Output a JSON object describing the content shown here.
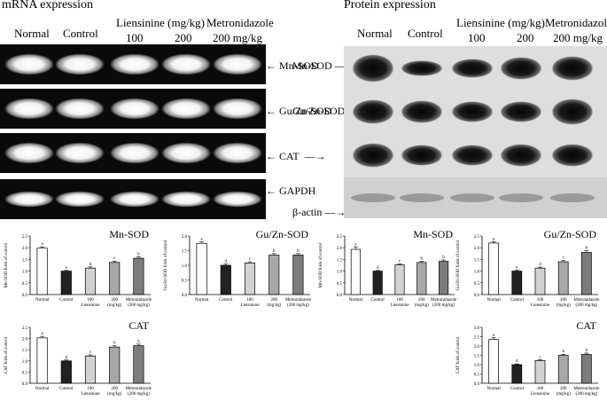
{
  "sections": {
    "mrna_title": "mRNA expression",
    "protein_title": "Protein expression"
  },
  "groups": {
    "normal": "Normal",
    "control": "Control",
    "liensinine": "Liensinine (mg/kg)",
    "dose100": "100",
    "dose200": "200",
    "metronidazole": "Metronidazole",
    "metro_dose": "200 mg/kg"
  },
  "gel_labels": [
    "Mn-SOD",
    "Gu/Zn-SOD",
    "CAT",
    "GAPDH"
  ],
  "blot_labels": [
    "Mn-SOD",
    "Gu/Zn-SOD",
    "CAT",
    "β-actin"
  ],
  "colors": {
    "normal": "#ffffff",
    "control": "#222222",
    "dose100": "#d2d2d2",
    "dose200": "#a8a8a8",
    "metronidazole": "#7c7c7c"
  },
  "chart_data": [
    {
      "type": "bar",
      "title": "Mn-SOD",
      "ylabel": "Mn-SOD folds of control",
      "ylim": [
        0,
        2.5
      ],
      "yticks": [
        "0.0",
        "0.5",
        "1.0",
        "1.5",
        "2.0",
        "2.5"
      ],
      "categories": [
        "Normal",
        "Control",
        "100",
        "200",
        "Metronidazole"
      ],
      "category_sub": [
        "",
        "",
        "Liensinine",
        "(mg/kg)",
        "(200 mg/kg)"
      ],
      "values": [
        1.98,
        1.0,
        1.13,
        1.37,
        1.55
      ],
      "errors": [
        0.06,
        0.03,
        0.05,
        0.06,
        0.06
      ],
      "letters": [
        "a",
        "e",
        "d",
        "c",
        "b"
      ]
    },
    {
      "type": "bar",
      "title": "Gu/Zn-SOD",
      "ylabel": "Gu/Zn-SOD folds of control",
      "ylim": [
        0,
        2.0
      ],
      "yticks": [
        "0.0",
        "0.5",
        "1.0",
        "1.5",
        "2.0"
      ],
      "categories": [
        "Normal",
        "Control",
        "100",
        "200",
        "Metronidazole"
      ],
      "category_sub": [
        "",
        "",
        "Liensinine",
        "(mg/kg)",
        "(200 mg/kg)"
      ],
      "values": [
        1.75,
        1.0,
        1.08,
        1.35,
        1.35
      ],
      "errors": [
        0.05,
        0.04,
        0.04,
        0.05,
        0.05
      ],
      "letters": [
        "a",
        "d",
        "c",
        "b",
        "b"
      ]
    },
    {
      "type": "bar",
      "title": "CAT",
      "ylabel": "CAT folds of control",
      "ylim": [
        0,
        2.5
      ],
      "yticks": [
        "0.0",
        "0.5",
        "1.0",
        "1.5",
        "2.0",
        "2.5"
      ],
      "categories": [
        "Normal",
        "Control",
        "100",
        "200",
        "Metronidazole"
      ],
      "category_sub": [
        "",
        "",
        "Liensinine",
        "(mg/kg)",
        "(200 mg/kg)"
      ],
      "values": [
        2.03,
        1.0,
        1.22,
        1.62,
        1.68
      ],
      "errors": [
        0.07,
        0.04,
        0.05,
        0.06,
        0.07
      ],
      "letters": [
        "a",
        "d",
        "c",
        "b",
        "b"
      ]
    },
    {
      "type": "bar",
      "title": "Mn-SOD",
      "ylabel": "Mn-SOD folds of control",
      "ylim": [
        0,
        2.5
      ],
      "yticks": [
        "0.0",
        "0.5",
        "1.0",
        "1.5",
        "2.0",
        "2.5"
      ],
      "categories": [
        "Normal",
        "Control",
        "100",
        "200",
        "Metronidazole"
      ],
      "category_sub": [
        "",
        "",
        "Liensinine",
        "(mg/kg)",
        "(200 mg/kg)"
      ],
      "values": [
        1.93,
        1.0,
        1.27,
        1.37,
        1.42
      ],
      "errors": [
        0.1,
        0.03,
        0.04,
        0.05,
        0.06
      ],
      "letters": [
        "a",
        "d",
        "c",
        "b",
        "b"
      ]
    },
    {
      "type": "bar",
      "title": "Gu/Zn-SOD",
      "ylabel": "Gu/Zn-SOD folds of control",
      "ylim": [
        0,
        2.5
      ],
      "yticks": [
        "0.0",
        "0.5",
        "1.0",
        "1.5",
        "2.0",
        "2.5"
      ],
      "categories": [
        "Normal",
        "Control",
        "100",
        "200",
        "Metronidazole"
      ],
      "category_sub": [
        "",
        "",
        "Liensinine",
        "(mg/kg)",
        "(200 mg/kg)"
      ],
      "values": [
        2.2,
        1.0,
        1.13,
        1.4,
        1.8
      ],
      "errors": [
        0.06,
        0.04,
        0.04,
        0.05,
        0.07
      ],
      "letters": [
        "a",
        "e",
        "d",
        "c",
        "b"
      ]
    },
    {
      "type": "bar",
      "title": "CAT",
      "ylabel": "CAT folds of control",
      "ylim": [
        0,
        3.0
      ],
      "yticks": [
        "0.0",
        "0.5",
        "1.0",
        "1.5",
        "2.0",
        "2.5",
        "3.0"
      ],
      "categories": [
        "Normal",
        "Control",
        "100",
        "200",
        "Metronidazole"
      ],
      "category_sub": [
        "",
        "",
        "Liensinine",
        "(mg/kg)",
        "(200 mg/kg)"
      ],
      "values": [
        2.35,
        1.0,
        1.22,
        1.5,
        1.55
      ],
      "errors": [
        0.09,
        0.04,
        0.05,
        0.06,
        0.07
      ],
      "letters": [
        "a",
        "d",
        "c",
        "b",
        "b"
      ]
    }
  ]
}
